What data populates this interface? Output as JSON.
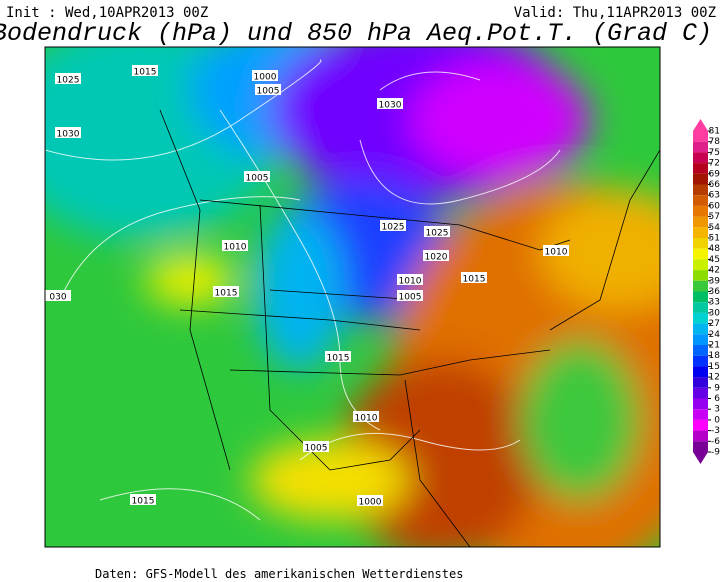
{
  "header": {
    "init": "Init : Wed,10APR2013 00Z",
    "valid": "Valid: Thu,11APR2013 00Z",
    "title": "Bodendruck (hPa) und 850 hPa Aeq.Pot.T. (Grad C)"
  },
  "isobar_labels": [
    "1025",
    "1015",
    "1000",
    "1005",
    "1030",
    "1030",
    "1005",
    "1025",
    "1025",
    "1020",
    "1010",
    "1010",
    "1010",
    "1015",
    "1005",
    "1015",
    "030",
    "1015",
    "1010",
    "1005",
    "1015",
    "1000"
  ],
  "colorbar": {
    "ticks": [
      81,
      78,
      75,
      72,
      69,
      66,
      63,
      60,
      57,
      54,
      51,
      48,
      45,
      42,
      39,
      36,
      33,
      30,
      27,
      24,
      21,
      18,
      15,
      12,
      9,
      6,
      3,
      0,
      -3,
      -6,
      -9
    ],
    "colors": [
      "#ff3ca0",
      "#e0208a",
      "#c80050",
      "#b4001e",
      "#a01400",
      "#b43c00",
      "#d25a00",
      "#e67800",
      "#f09600",
      "#f5b400",
      "#f0d200",
      "#f5f500",
      "#c8f000",
      "#8cdc00",
      "#3cc83c",
      "#00be64",
      "#00c8a0",
      "#00d2d2",
      "#00b4f0",
      "#0096ff",
      "#0064ff",
      "#0032ff",
      "#0000f0",
      "#3200dc",
      "#6400e6",
      "#9600f0",
      "#c800f5",
      "#ff00ff",
      "#b400c8",
      "#780096"
    ]
  },
  "footer": "Daten: GFS-Modell des amerikanischen Wetterdienstes"
}
